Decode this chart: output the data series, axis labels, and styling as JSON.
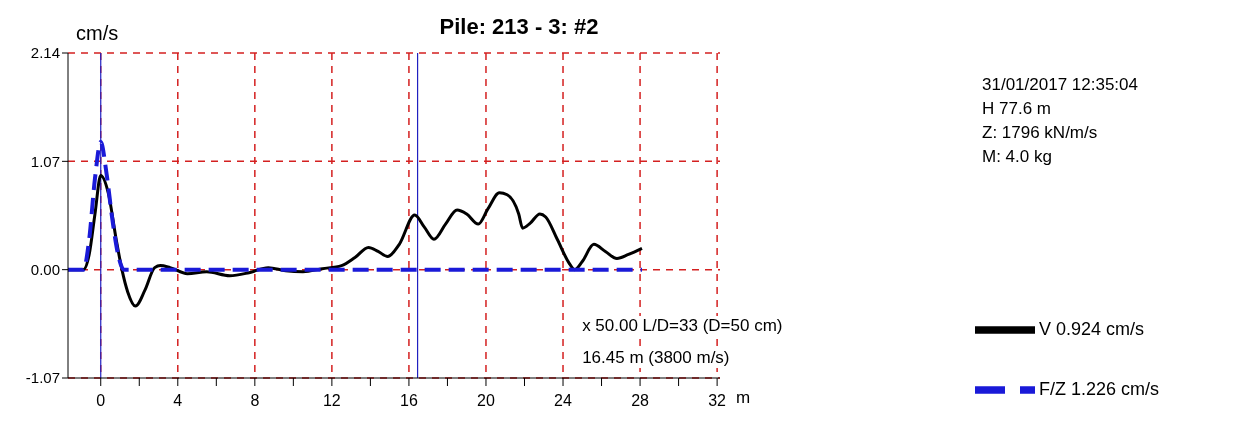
{
  "chart_data": {
    "type": "line",
    "title": "Pile: 213 - 3: #2",
    "ylabel": "cm/s",
    "xlabel": "m",
    "annotations": [
      "x 50.00  L/D=33 (D=50 cm)",
      "16.45 m (3800 m/s)",
      "31/01/2017 12:35:04",
      "H  77.6 m",
      "Z: 1796 kN/m/s",
      "M: 4.0 kg"
    ],
    "series": [
      {
        "name": "V   0.924 cm/s",
        "color": "#000000",
        "line_style": "solid",
        "x": [
          -1.7,
          -0.9,
          -0.6,
          -0.3,
          0.0,
          0.4,
          0.8,
          1.1,
          1.4,
          1.8,
          2.3,
          2.8,
          3.1,
          3.6,
          4.5,
          5.5,
          6.7,
          7.7,
          8.7,
          9.6,
          10.5,
          11.5,
          12.5,
          13.2,
          13.9,
          14.4,
          14.9,
          15.5,
          16.3,
          16.8,
          17.3,
          17.9,
          18.5,
          19.0,
          19.6,
          20.1,
          20.7,
          21.1,
          21.7,
          21.9,
          22.3,
          22.8,
          23.1,
          23.7,
          24.3,
          24.6,
          25.0,
          25.6,
          26.2,
          26.8,
          27.4,
          28.1
        ],
        "values": [
          0,
          0,
          0.15,
          0.55,
          0.93,
          0.75,
          0.3,
          0.0,
          -0.22,
          -0.36,
          -0.2,
          0.02,
          0.04,
          0.02,
          -0.04,
          -0.02,
          -0.06,
          -0.03,
          0.02,
          -0.01,
          -0.02,
          0.01,
          0.04,
          0.12,
          0.22,
          0.18,
          0.13,
          0.25,
          0.54,
          0.42,
          0.3,
          0.45,
          0.59,
          0.55,
          0.45,
          0.6,
          0.76,
          0.74,
          0.55,
          0.41,
          0.46,
          0.55,
          0.52,
          0.3,
          0.07,
          0.0,
          0.08,
          0.25,
          0.18,
          0.11,
          0.15,
          0.21
        ]
      },
      {
        "name": "F/Z  1.226 cm/s",
        "color": "#1a1ad8",
        "line_style": "dashed",
        "x": [
          -1.7,
          -0.9,
          -0.6,
          -0.3,
          0.0,
          0.3,
          0.6,
          0.9,
          1.2,
          4,
          8,
          12,
          16,
          20,
          24,
          28.1
        ],
        "values": [
          0,
          0,
          0.3,
          0.9,
          1.26,
          0.95,
          0.5,
          0.15,
          0,
          0,
          0,
          0,
          0,
          0,
          0,
          0
        ]
      }
    ],
    "xlim": [
      -1.7,
      32.15
    ],
    "ylim": [
      -1.07,
      2.14
    ],
    "xticks": [
      0,
      {
        "value": 2,
        "label": null
      },
      4,
      {
        "value": 6,
        "label": null
      },
      8,
      {
        "value": 10,
        "label": null
      },
      12,
      {
        "value": 14,
        "label": null
      },
      16,
      {
        "value": 18,
        "label": null
      },
      20,
      {
        "value": 22,
        "label": null
      },
      24,
      {
        "value": 26,
        "label": null
      },
      28,
      {
        "value": 30,
        "label": null
      },
      32
    ],
    "yticks": [
      -1.07,
      {
        "value": 0,
        "label": "0.00"
      },
      1.07,
      2.14
    ],
    "ref_lines": [
      {
        "axis": "x",
        "value": 0,
        "color": "#2020c0"
      },
      {
        "axis": "x",
        "value": 16.45,
        "color": "#2020c0"
      }
    ],
    "grid": true,
    "legend": "bottom right",
    "marker": "none"
  }
}
